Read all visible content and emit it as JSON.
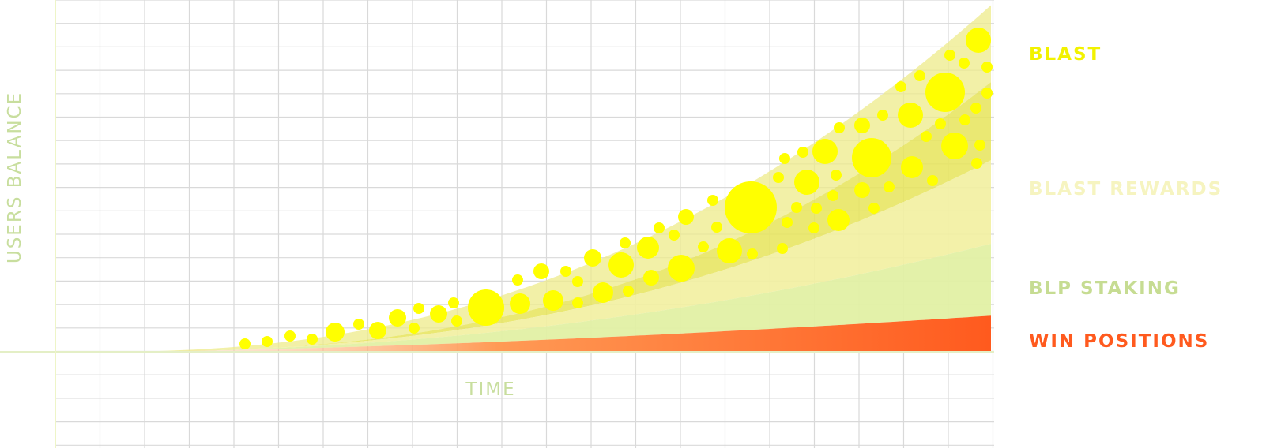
{
  "chart_data": {
    "type": "area",
    "xlabel": "TIME",
    "ylabel": "USERS BALANCE",
    "axes": {
      "x_ticks": false,
      "y_ticks": false,
      "grid": true
    },
    "series": [
      {
        "name": "BLAST",
        "color": "#F5F500",
        "label_color": "#F2F200",
        "fill": "#E6E45A"
      },
      {
        "name": "BLAST REWARDS",
        "color": "#F7F5B0",
        "label_color": "#F6F4C0",
        "fill": "#F2EFA0"
      },
      {
        "name": "BLP STAKING",
        "color": "#C8DE8E",
        "label_color": "#C6DC92",
        "fill": "#E2F0A4"
      },
      {
        "name": "WIN POSITIONS",
        "color": "#FF5A1E",
        "label_color": "#FF5A1E",
        "fill": "#FF6A28"
      }
    ],
    "colors": {
      "grid": "#D9D9D9",
      "axis_text": "#C8DE9E",
      "bubbles": "#FFFF00"
    }
  }
}
